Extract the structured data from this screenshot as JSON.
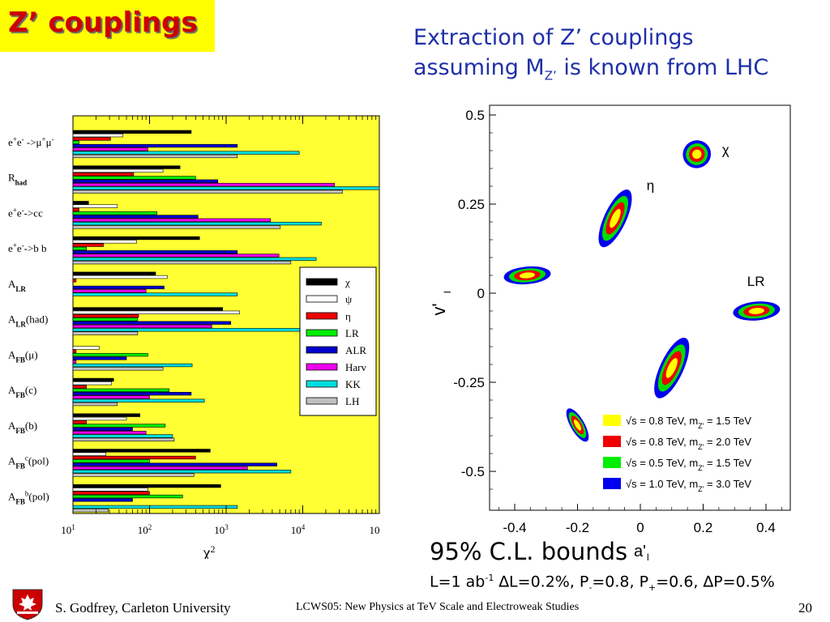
{
  "slide": {
    "title": "Z’ couplings",
    "subtitle_line1": "Extraction of Z’ couplings",
    "subtitle_line2_a": "assuming M",
    "subtitle_line2_sub": "Z’",
    "subtitle_line2_b": " is known from LHC",
    "cl_bounds": "95% C.L. bounds",
    "cl_detail_html": "L=1 ab<sup>-1</sup> ∆L=0.2%, P<sub>-</sub>=0.8, P<sub>+</sub>=0.6, ∆P=0.5%",
    "footer_left": "S. Godfrey, Carleton University",
    "footer_mid": "LCWS05: New Physics at TeV Scale and Electroweak Studies",
    "footer_right": "20"
  },
  "colors": {
    "title_bg": "#ffff00",
    "title_text": "#cc0000",
    "subtitle_text": "#1f2fa8",
    "left_plot_bg": "#ffff33"
  },
  "chart_data": [
    {
      "type": "bar",
      "orientation": "horizontal",
      "xscale": "log",
      "xlabel": "χ²",
      "xlim": [
        10,
        100000
      ],
      "xticks": [
        "10¹",
        "10²",
        "10³",
        "10⁴",
        "10"
      ],
      "categories": [
        "e⁺e⁻->μ⁺μ⁻",
        "R_had",
        "e⁺e⁻->cc",
        "e⁺e⁻->b b",
        "A_LR",
        "A_LR(had)",
        "A_FB(μ)",
        "A_FB(c)",
        "A_FB(b)",
        "A_FB^c(pol)",
        "A_FB^b(pol)"
      ],
      "category_labels": [
        {
          "main": "e",
          "parts": [
            [
              "e",
              ""
            ],
            [
              "+",
              "sup"
            ],
            [
              "e",
              ""
            ],
            [
              "-",
              "sup"
            ],
            [
              " ->μ",
              ""
            ],
            [
              "+",
              "sup"
            ],
            [
              "μ",
              ""
            ],
            [
              "-",
              "sup"
            ]
          ]
        }
      ],
      "series": [
        {
          "name": "χ",
          "color": "#000000",
          "values": [
            350,
            250,
            16,
            450,
            120,
            900,
            10,
            34,
            75,
            620,
            850
          ]
        },
        {
          "name": "ψ",
          "color": "#ffffff",
          "values": [
            45,
            150,
            38,
            68,
            170,
            1500,
            22,
            32,
            50,
            27,
            95
          ]
        },
        {
          "name": "η",
          "color": "#ee0000",
          "values": [
            31,
            62,
            12,
            25,
            11,
            72,
            11,
            15,
            15,
            400,
            100
          ]
        },
        {
          "name": "LR",
          "color": "#00ee00",
          "values": [
            12,
            400,
            125,
            15,
            10,
            70,
            95,
            180,
            160,
            100,
            270
          ]
        },
        {
          "name": "ALR",
          "color": "#0000cc",
          "values": [
            1400,
            780,
            430,
            1400,
            155,
            1150,
            50,
            350,
            60,
            4600,
            60
          ]
        },
        {
          "name": "Harv",
          "color": "#ee00ee",
          "values": [
            95,
            26000,
            3800,
            4900,
            90,
            650,
            11,
            100,
            90,
            1900,
            10
          ]
        },
        {
          "name": "KK",
          "color": "#00dddd",
          "values": [
            9000,
            100000,
            17500,
            15000,
            1400,
            90000,
            360,
            520,
            200,
            7000,
            1400
          ]
        },
        {
          "name": "LH",
          "color": "#c0c0c0",
          "values": [
            1400,
            33000,
            5100,
            7000,
            10,
            70,
            150,
            38,
            210,
            380,
            29
          ]
        }
      ]
    },
    {
      "type": "scatter",
      "description_kind": "95% C.L. contour ellipses",
      "xlabel": "a'l",
      "ylabel": "v'l",
      "xlim": [
        -0.5,
        0.5
      ],
      "ylim": [
        -0.6,
        0.5
      ],
      "xticks": [
        "-0.4",
        "-0.2",
        "0",
        "0.2",
        "0.4"
      ],
      "yticks": [
        "0.5",
        "0.25",
        "0",
        "-0.25",
        "-0.5"
      ],
      "model_labels": [
        {
          "text": "χ",
          "x": 0.26,
          "y": 0.39
        },
        {
          "text": "η",
          "x": 0.02,
          "y": 0.29
        },
        {
          "text": "LR",
          "x": 0.34,
          "y": 0.02
        }
      ],
      "contours": [
        {
          "center": [
            0.18,
            0.39
          ],
          "rx": 0.044,
          "ry": 0.045,
          "rot": 55
        },
        {
          "center": [
            -0.08,
            0.21
          ],
          "rx": 0.1,
          "ry": 0.035,
          "rot": -65
        },
        {
          "center": [
            -0.36,
            0.05
          ],
          "rx": 0.075,
          "ry": 0.028,
          "rot": -5
        },
        {
          "center": [
            0.37,
            -0.05
          ],
          "rx": 0.075,
          "ry": 0.03,
          "rot": -5
        },
        {
          "center": [
            0.1,
            -0.21
          ],
          "rx": 0.105,
          "ry": 0.037,
          "rot": -65
        },
        {
          "center": [
            -0.2,
            -0.37
          ],
          "rx": 0.06,
          "ry": 0.022,
          "rot": 60
        }
      ],
      "legend": [
        {
          "label_a": "√s = 0.8 TeV, m",
          "sub": "Z'",
          "label_b": " = 1.5 TeV",
          "color": "#ffff00"
        },
        {
          "label_a": "√s = 0.8 TeV, m",
          "sub": "Z'",
          "label_b": " = 2.0 TeV",
          "color": "#ee0000"
        },
        {
          "label_a": "√s = 0.5 TeV, m",
          "sub": "Z'",
          "label_b": " = 1.5 TeV",
          "color": "#00ee00"
        },
        {
          "label_a": "√s = 1.0 TeV, m",
          "sub": "Z'",
          "label_b": " = 3.0 TeV",
          "color": "#0000ee"
        }
      ],
      "legend_position": "bottom-right"
    }
  ]
}
